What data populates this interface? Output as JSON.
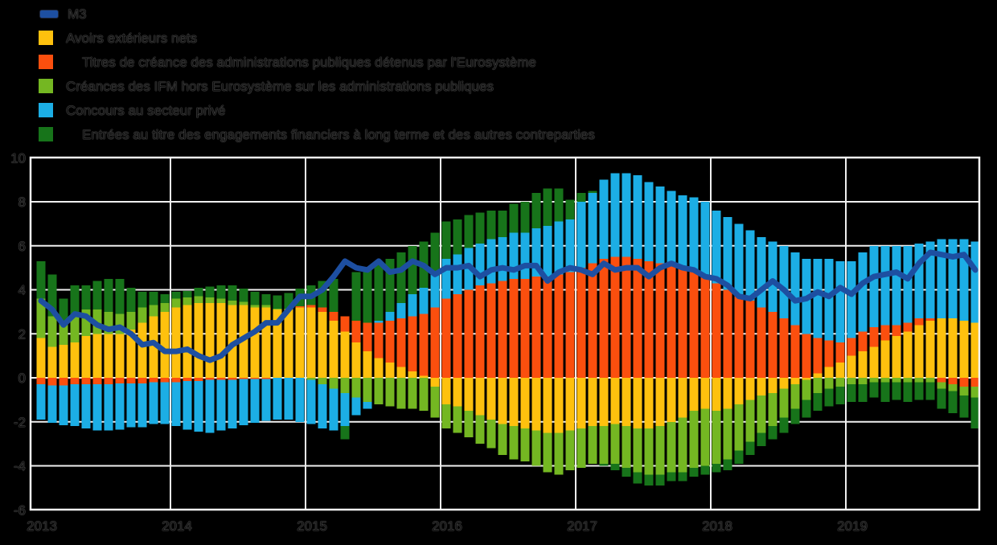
{
  "chart_data": {
    "type": "bar",
    "stacked": true,
    "unit": "contributions en points de pourcentage",
    "grid": true,
    "legend_position": "top-left",
    "background_color": "#000000",
    "grid_color": "#efefef",
    "text_color": "#101010",
    "ylim": [
      -6,
      10
    ],
    "yticks": [
      10,
      8,
      6,
      4,
      2,
      0,
      -2,
      -4,
      -6
    ],
    "xticks": [
      "2013",
      "2014",
      "2015",
      "2016",
      "2017",
      "2018",
      "2019"
    ],
    "x": [
      "2013-01",
      "2013-02",
      "2013-03",
      "2013-04",
      "2013-05",
      "2013-06",
      "2013-07",
      "2013-08",
      "2013-09",
      "2013-10",
      "2013-11",
      "2013-12",
      "2014-01",
      "2014-02",
      "2014-03",
      "2014-04",
      "2014-05",
      "2014-06",
      "2014-07",
      "2014-08",
      "2014-09",
      "2014-10",
      "2014-11",
      "2014-12",
      "2015-01",
      "2015-02",
      "2015-03",
      "2015-04",
      "2015-05",
      "2015-06",
      "2015-07",
      "2015-08",
      "2015-09",
      "2015-10",
      "2015-11",
      "2015-12",
      "2016-01",
      "2016-02",
      "2016-03",
      "2016-04",
      "2016-05",
      "2016-06",
      "2016-07",
      "2016-08",
      "2016-09",
      "2016-10",
      "2016-11",
      "2016-12",
      "2017-01",
      "2017-02",
      "2017-03",
      "2017-04",
      "2017-05",
      "2017-06",
      "2017-07",
      "2017-08",
      "2017-09",
      "2017-10",
      "2017-11",
      "2017-12",
      "2018-01",
      "2018-02",
      "2018-03",
      "2018-04",
      "2018-05",
      "2018-06",
      "2018-07",
      "2018-08",
      "2018-09",
      "2018-10",
      "2018-11",
      "2018-12",
      "2019-01",
      "2019-02",
      "2019-03",
      "2019-04",
      "2019-05",
      "2019-06",
      "2019-07",
      "2019-08",
      "2019-09",
      "2019-10",
      "2019-11",
      "2019-12"
    ],
    "series": [
      {
        "name": "Avoirs extérieurs nets",
        "color": "#fec10e",
        "values": [
          1.8,
          1.4,
          1.5,
          1.6,
          1.9,
          2.0,
          2.0,
          2.0,
          2.2,
          2.5,
          2.8,
          3.0,
          3.2,
          3.3,
          3.4,
          3.4,
          3.4,
          3.3,
          3.3,
          3.2,
          3.2,
          3.1,
          3.1,
          3.2,
          3.2,
          3.0,
          2.6,
          2.1,
          1.6,
          1.2,
          0.9,
          0.7,
          0.5,
          0.3,
          0.1,
          -0.4,
          -1.2,
          -1.3,
          -1.5,
          -1.7,
          -1.9,
          -2.1,
          -2.2,
          -2.3,
          -2.4,
          -2.5,
          -2.5,
          -2.4,
          -2.3,
          -2.2,
          -2.2,
          -2.1,
          -2.2,
          -2.3,
          -2.3,
          -2.2,
          -2.0,
          -1.8,
          -1.5,
          -1.4,
          -1.5,
          -1.4,
          -1.2,
          -1.0,
          -0.8,
          -0.7,
          -0.5,
          -0.3,
          -0.1,
          0.2,
          0.5,
          0.7,
          1.0,
          1.2,
          1.4,
          1.7,
          1.9,
          2.1,
          2.4,
          2.6,
          2.7,
          2.7,
          2.6,
          2.5
        ]
      },
      {
        "name": "Titres de créance des administrations publiques détenus par l'Eurosystème",
        "color": "#fb4f0e",
        "values": [
          -0.3,
          -0.35,
          -0.35,
          -0.3,
          -0.3,
          -0.3,
          -0.3,
          -0.25,
          -0.25,
          -0.25,
          -0.2,
          -0.2,
          -0.2,
          -0.15,
          -0.15,
          -0.1,
          -0.1,
          -0.1,
          -0.05,
          -0.05,
          -0.05,
          0,
          0,
          0.05,
          0.1,
          0.2,
          0.4,
          0.7,
          1.0,
          1.3,
          1.6,
          1.9,
          2.2,
          2.5,
          2.8,
          3.2,
          3.6,
          3.8,
          4.0,
          4.2,
          4.3,
          4.4,
          4.5,
          4.5,
          4.6,
          4.6,
          4.7,
          4.8,
          5.0,
          5.2,
          5.4,
          5.5,
          5.5,
          5.4,
          5.3,
          5.2,
          5.1,
          5.0,
          4.8,
          4.6,
          4.3,
          4.0,
          3.8,
          3.5,
          3.2,
          3.0,
          2.7,
          2.4,
          2.0,
          1.6,
          1.2,
          0.9,
          0.8,
          0.9,
          0.9,
          0.7,
          0.5,
          0.4,
          0.3,
          0.1,
          -0.2,
          -0.3,
          -0.4,
          -0.4
        ]
      },
      {
        "name": "Créances des IFM hors Eurosystème sur les administrations publiques",
        "color": "#74b722",
        "values": [
          1.8,
          1.4,
          1.1,
          1.2,
          1.2,
          1.1,
          1.0,
          0.9,
          0.8,
          0.7,
          0.5,
          0.4,
          0.4,
          0.35,
          0.3,
          0.25,
          0.2,
          0.2,
          0.15,
          0.1,
          0.1,
          0.05,
          0.05,
          0,
          -0.1,
          -0.3,
          -0.5,
          -0.7,
          -0.9,
          -1.1,
          -1.2,
          -1.3,
          -1.4,
          -1.4,
          -1.5,
          -1.4,
          -1.1,
          -1.2,
          -1.2,
          -1.3,
          -1.3,
          -1.4,
          -1.5,
          -1.5,
          -1.6,
          -1.8,
          -1.9,
          -1.8,
          -1.8,
          -1.7,
          -1.7,
          -1.8,
          -1.9,
          -2.0,
          -2.1,
          -2.2,
          -2.3,
          -2.5,
          -2.6,
          -2.6,
          -2.4,
          -2.3,
          -2.1,
          -1.9,
          -1.7,
          -1.5,
          -1.3,
          -1.1,
          -0.9,
          -0.7,
          -0.5,
          -0.4,
          -0.3,
          -0.3,
          -0.2,
          -0.2,
          -0.2,
          -0.2,
          -0.2,
          -0.2,
          -0.3,
          -0.3,
          -0.4,
          -0.5
        ]
      },
      {
        "name": "Concours au secteur privé",
        "color": "#1caee5",
        "values": [
          -1.6,
          -1.7,
          -1.8,
          -1.9,
          -2.0,
          -2.1,
          -2.1,
          -2.1,
          -2.0,
          -2.0,
          -1.9,
          -1.9,
          -2.0,
          -2.2,
          -2.3,
          -2.4,
          -2.3,
          -2.2,
          -2.1,
          -2.0,
          -1.9,
          -1.9,
          -1.9,
          -2.0,
          -2.0,
          -2.0,
          -1.9,
          -1.5,
          -0.8,
          -0.3,
          0.1,
          0.4,
          0.7,
          1.0,
          1.2,
          1.5,
          1.8,
          1.8,
          1.9,
          1.9,
          2.0,
          2.0,
          2.1,
          2.1,
          2.2,
          2.3,
          2.4,
          2.4,
          3.0,
          3.2,
          3.6,
          3.8,
          3.8,
          3.8,
          3.6,
          3.5,
          3.4,
          3.3,
          3.4,
          3.4,
          3.3,
          3.3,
          3.2,
          3.2,
          3.2,
          3.2,
          3.3,
          3.3,
          3.4,
          3.6,
          3.7,
          3.7,
          3.5,
          3.6,
          3.7,
          3.6,
          3.6,
          3.5,
          3.4,
          3.5,
          3.6,
          3.6,
          3.7,
          3.7
        ]
      },
      {
        "name": "Entrées au titre des engagements financiers à long terme et des autres contreparties",
        "color": "#17741a",
        "values": [
          1.7,
          1.9,
          1.0,
          1.4,
          1.1,
          1.3,
          1.5,
          1.6,
          1.1,
          0.7,
          0.6,
          0.4,
          0.3,
          0.3,
          0.4,
          0.5,
          0.6,
          0.7,
          0.6,
          0.6,
          0.5,
          0.6,
          0.7,
          0.8,
          0.9,
          1.2,
          1.5,
          -0.6,
          2.2,
          2.5,
          2.6,
          2.4,
          2.3,
          2.2,
          2.1,
          1.9,
          1.7,
          1.6,
          1.5,
          1.4,
          1.3,
          1.2,
          1.3,
          1.4,
          1.6,
          1.7,
          1.5,
          0.9,
          0.4,
          0.1,
          -0.1,
          -0.3,
          -0.4,
          -0.5,
          -0.5,
          -0.5,
          -0.4,
          -0.4,
          -0.4,
          -0.4,
          -0.4,
          -0.5,
          -0.6,
          -0.6,
          -0.6,
          -0.6,
          -0.7,
          -0.7,
          -0.8,
          -0.8,
          -0.8,
          -0.8,
          -0.8,
          -0.8,
          -0.7,
          -0.9,
          -0.8,
          -0.9,
          -0.8,
          -0.8,
          -0.9,
          -1.0,
          -1.0,
          -1.4
        ]
      }
    ],
    "line": {
      "name": "M3",
      "color": "#1d4fa1",
      "values": [
        3.5,
        3.1,
        2.4,
        2.9,
        2.8,
        2.4,
        2.2,
        2.3,
        2.0,
        1.5,
        1.6,
        1.2,
        1.2,
        1.3,
        1.0,
        0.8,
        1.0,
        1.5,
        1.8,
        2.1,
        2.5,
        2.5,
        3.1,
        3.7,
        3.7,
        4.0,
        4.6,
        5.3,
        5.0,
        4.9,
        5.3,
        4.8,
        4.9,
        5.3,
        5.1,
        4.7,
        5.0,
        5.0,
        5.1,
        4.6,
        4.9,
        5.0,
        4.9,
        5.1,
        5.1,
        4.4,
        4.8,
        5.0,
        4.9,
        4.7,
        5.2,
        4.9,
        5.0,
        5.0,
        4.6,
        5.0,
        5.2,
        5.0,
        4.9,
        4.6,
        4.5,
        4.2,
        3.7,
        3.6,
        4.0,
        4.4,
        4.0,
        3.5,
        3.6,
        3.9,
        3.7,
        4.1,
        3.8,
        4.3,
        4.6,
        4.7,
        4.8,
        4.5,
        5.2,
        5.7,
        5.6,
        5.5,
        5.6,
        4.9
      ]
    }
  }
}
